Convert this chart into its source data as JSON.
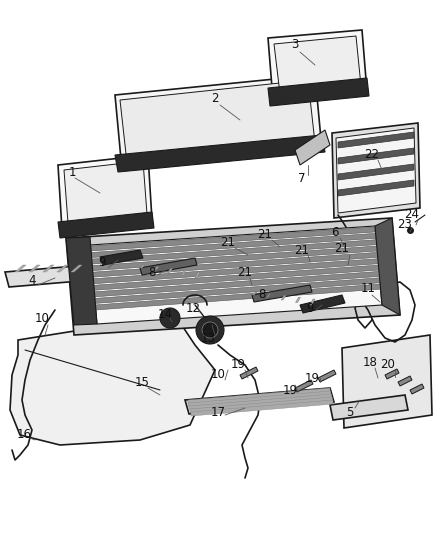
{
  "bg_color": "#ffffff",
  "fig_width": 4.38,
  "fig_height": 5.33,
  "line_color": "#1a1a1a",
  "fill_white": "#ffffff",
  "fill_light": "#f0f0f0",
  "fill_dark": "#404040",
  "fill_mid": "#808080"
}
